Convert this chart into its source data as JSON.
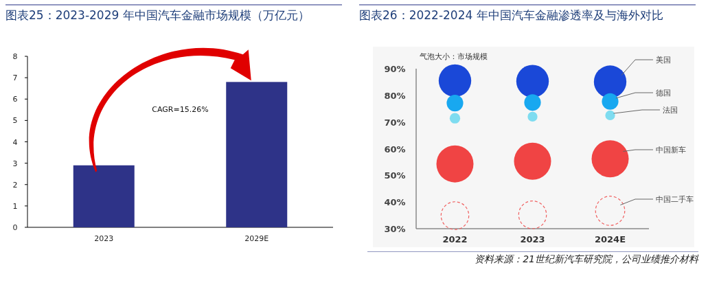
{
  "chart_data": [
    {
      "type": "bar",
      "title": "图表25：2023-2029 年中国汽车金融市场规模（万亿元）",
      "categories": [
        "2023",
        "2029E"
      ],
      "values": [
        2.9,
        6.8
      ],
      "color": "#2e3388",
      "ylim": [
        0,
        8
      ],
      "yticks": [
        0,
        1,
        2,
        3,
        4,
        5,
        6,
        7,
        8
      ],
      "annotations": [
        "CAGR=15.26%"
      ]
    },
    {
      "type": "bubble",
      "title": "图表26：2022-2024 年中国汽车金融渗透率及与海外对比",
      "categories": [
        "2022",
        "2023",
        "2024E"
      ],
      "ylim": [
        30,
        90
      ],
      "yticks": [
        {
          "value": 30,
          "label": "30%"
        },
        {
          "value": 40,
          "label": "40%"
        },
        {
          "value": 50,
          "label": "50%"
        },
        {
          "value": 60,
          "label": "60%"
        },
        {
          "value": 70,
          "label": "70%"
        },
        {
          "value": 80,
          "label": "80%"
        },
        {
          "value": 90,
          "label": "90%"
        }
      ],
      "annotations": [
        "气泡大小：市场规模",
        "资料来源：21世纪新汽车研究院，公司业绩推介材料"
      ],
      "series": [
        {
          "name": "美国",
          "color": "#1a48d8",
          "values": [
            85.5,
            85.3,
            85.1
          ],
          "sizes": [
            0.77,
            0.77,
            0.77
          ]
        },
        {
          "name": "德国",
          "color": "#18a8f0",
          "values": [
            77.1,
            77.3,
            77.7
          ],
          "sizes": [
            0.2,
            0.2,
            0.2
          ]
        },
        {
          "name": "法国",
          "color": "#7edcf0",
          "values": [
            71.4,
            72,
            72.5
          ],
          "sizes": [
            0.08,
            0.07,
            0.07
          ]
        },
        {
          "name": "中国新车",
          "color": "#f04444",
          "values": [
            54.3,
            55.3,
            56.2
          ],
          "sizes": [
            1,
            1,
            1
          ]
        },
        {
          "name": "中国二手车",
          "color": "#f06060",
          "values": [
            34.9,
            35.2,
            36.7
          ],
          "sizes": [
            0.56,
            0.56,
            0.62
          ],
          "line_style": "dashed"
        }
      ]
    }
  ]
}
